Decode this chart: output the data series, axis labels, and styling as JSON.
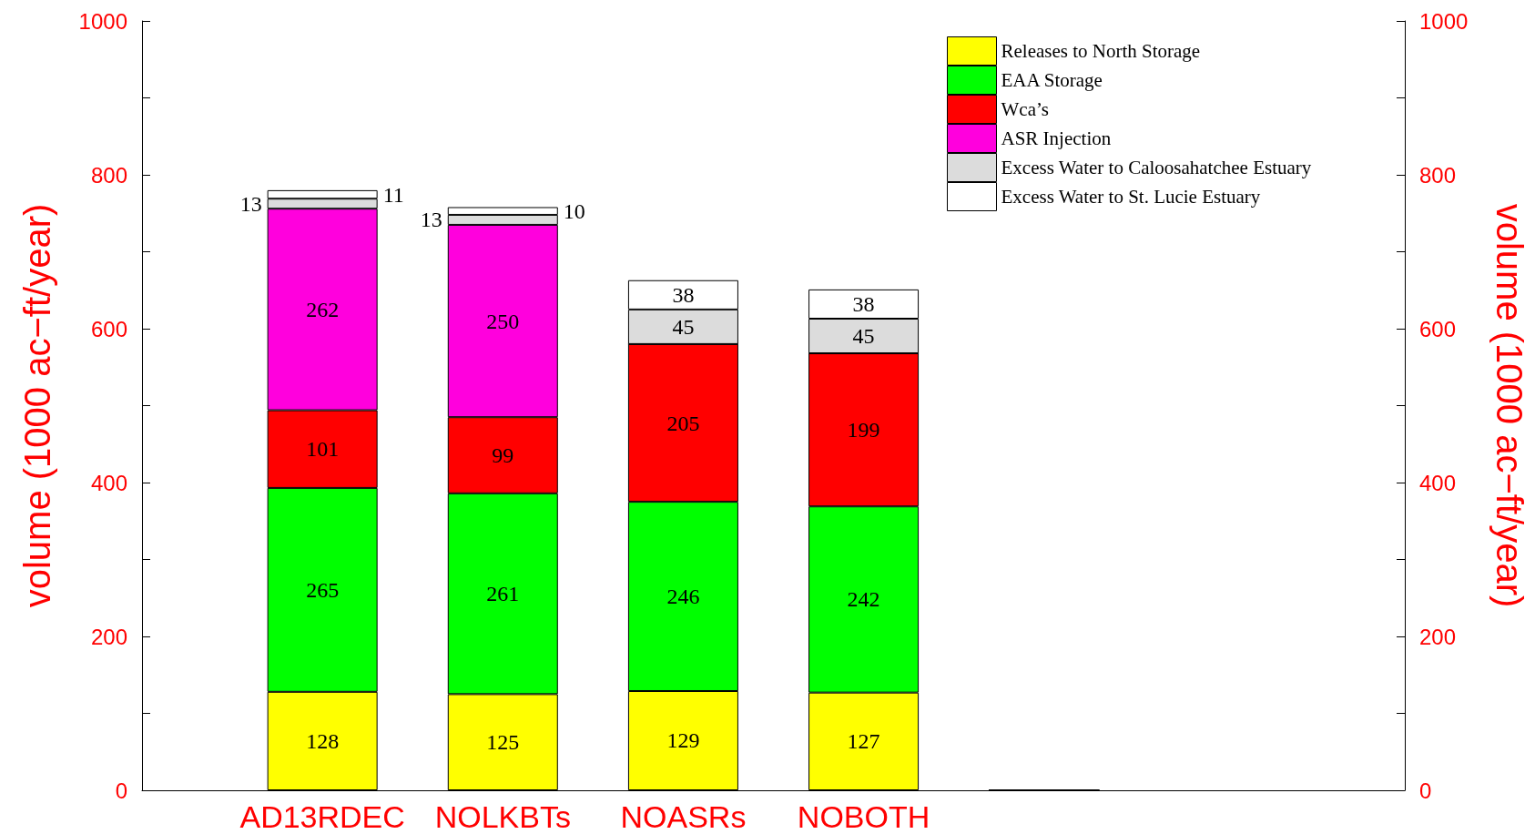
{
  "chart_data": {
    "type": "bar",
    "stacked": true,
    "ylabel": "volume (1000 ac−ft/year)",
    "y2label": "volume (1000 ac−ft/year)",
    "categories": [
      null,
      "AD13RDEC",
      "NOLKBTs",
      "NOASRs",
      "NOBOTH",
      null,
      null,
      null
    ],
    "series": [
      {
        "name": "Releases to North Storage",
        "color": "#ffff00",
        "values": [
          null,
          128,
          125,
          129,
          127,
          0,
          null,
          null
        ],
        "value_labels": [
          null,
          "128",
          "125",
          "129",
          "127",
          null,
          null,
          null
        ]
      },
      {
        "name": "EAA Storage",
        "color": "#00ff00",
        "values": [
          null,
          265,
          261,
          246,
          242,
          0,
          null,
          null
        ],
        "value_labels": [
          null,
          "265",
          "261",
          "246",
          "242",
          null,
          null,
          null
        ]
      },
      {
        "name": "Wca’s",
        "color": "#ff0000",
        "values": [
          null,
          101,
          99,
          205,
          199,
          0,
          null,
          null
        ],
        "value_labels": [
          null,
          "101",
          "99",
          "205",
          "199",
          null,
          null,
          null
        ]
      },
      {
        "name": "ASR Injection",
        "color": "#ff00dd",
        "values": [
          null,
          262,
          250,
          0,
          0,
          0,
          null,
          null
        ],
        "value_labels": [
          null,
          "262",
          "250",
          null,
          null,
          null,
          null,
          null
        ]
      },
      {
        "name": "Excess Water to Caloosahatchee Estuary",
        "color": "#dcdcdc",
        "values": [
          null,
          13,
          13,
          45,
          45,
          0,
          null,
          null
        ],
        "value_labels": [
          null,
          "13",
          "13",
          "45",
          "45",
          null,
          null,
          null
        ]
      },
      {
        "name": "Excess Water to St. Lucie Estuary",
        "color": "#ffffff",
        "values": [
          null,
          11,
          10,
          38,
          38,
          0,
          null,
          null
        ],
        "value_labels": [
          null,
          "11",
          "10",
          "38",
          "38",
          null,
          null,
          null
        ]
      }
    ],
    "ylim": [
      0,
      1000
    ],
    "yticks": [
      0,
      {
        "value": 100,
        "label": null
      },
      200,
      {
        "value": 300,
        "label": null
      },
      400,
      {
        "value": 500,
        "label": null
      },
      600,
      {
        "value": 700,
        "label": null
      },
      800,
      {
        "value": 900,
        "label": null
      },
      1000
    ],
    "y2lim": [
      0,
      1000
    ],
    "y2ticks": [
      0,
      {
        "value": 100,
        "label": null
      },
      200,
      {
        "value": 300,
        "label": null
      },
      400,
      {
        "value": 500,
        "label": null
      },
      600,
      {
        "value": 700,
        "label": null
      },
      800,
      {
        "value": 900,
        "label": null
      },
      1000
    ],
    "grid": false,
    "legend": "top right"
  }
}
